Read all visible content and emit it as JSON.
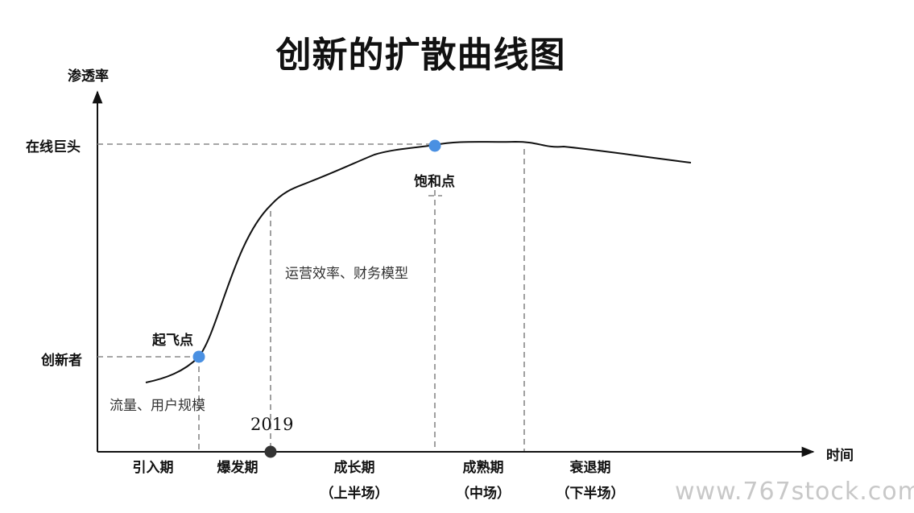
{
  "title": "创新的扩散曲线图",
  "y_axis_label": "渗透率",
  "x_axis_label": "时间",
  "y_levels": {
    "giant": "在线巨头",
    "innovator": "创新者"
  },
  "points": {
    "takeoff": "起飞点",
    "saturation": "饱和点",
    "year": "2019"
  },
  "notes": {
    "traffic": "流量、用户规模",
    "efficiency": "运营效率、财务模型"
  },
  "stages": [
    {
      "name": "引入期",
      "sub": ""
    },
    {
      "name": "爆发期",
      "sub": ""
    },
    {
      "name": "成长期",
      "sub": "（上半场）"
    },
    {
      "name": "成熟期",
      "sub": "（中场）"
    },
    {
      "name": "衰退期",
      "sub": "（下半场）"
    }
  ],
  "watermark": "www.767stock.com",
  "colors": {
    "marker": "#4a90e2",
    "year_dot": "#333333",
    "guide": "#888888"
  }
}
